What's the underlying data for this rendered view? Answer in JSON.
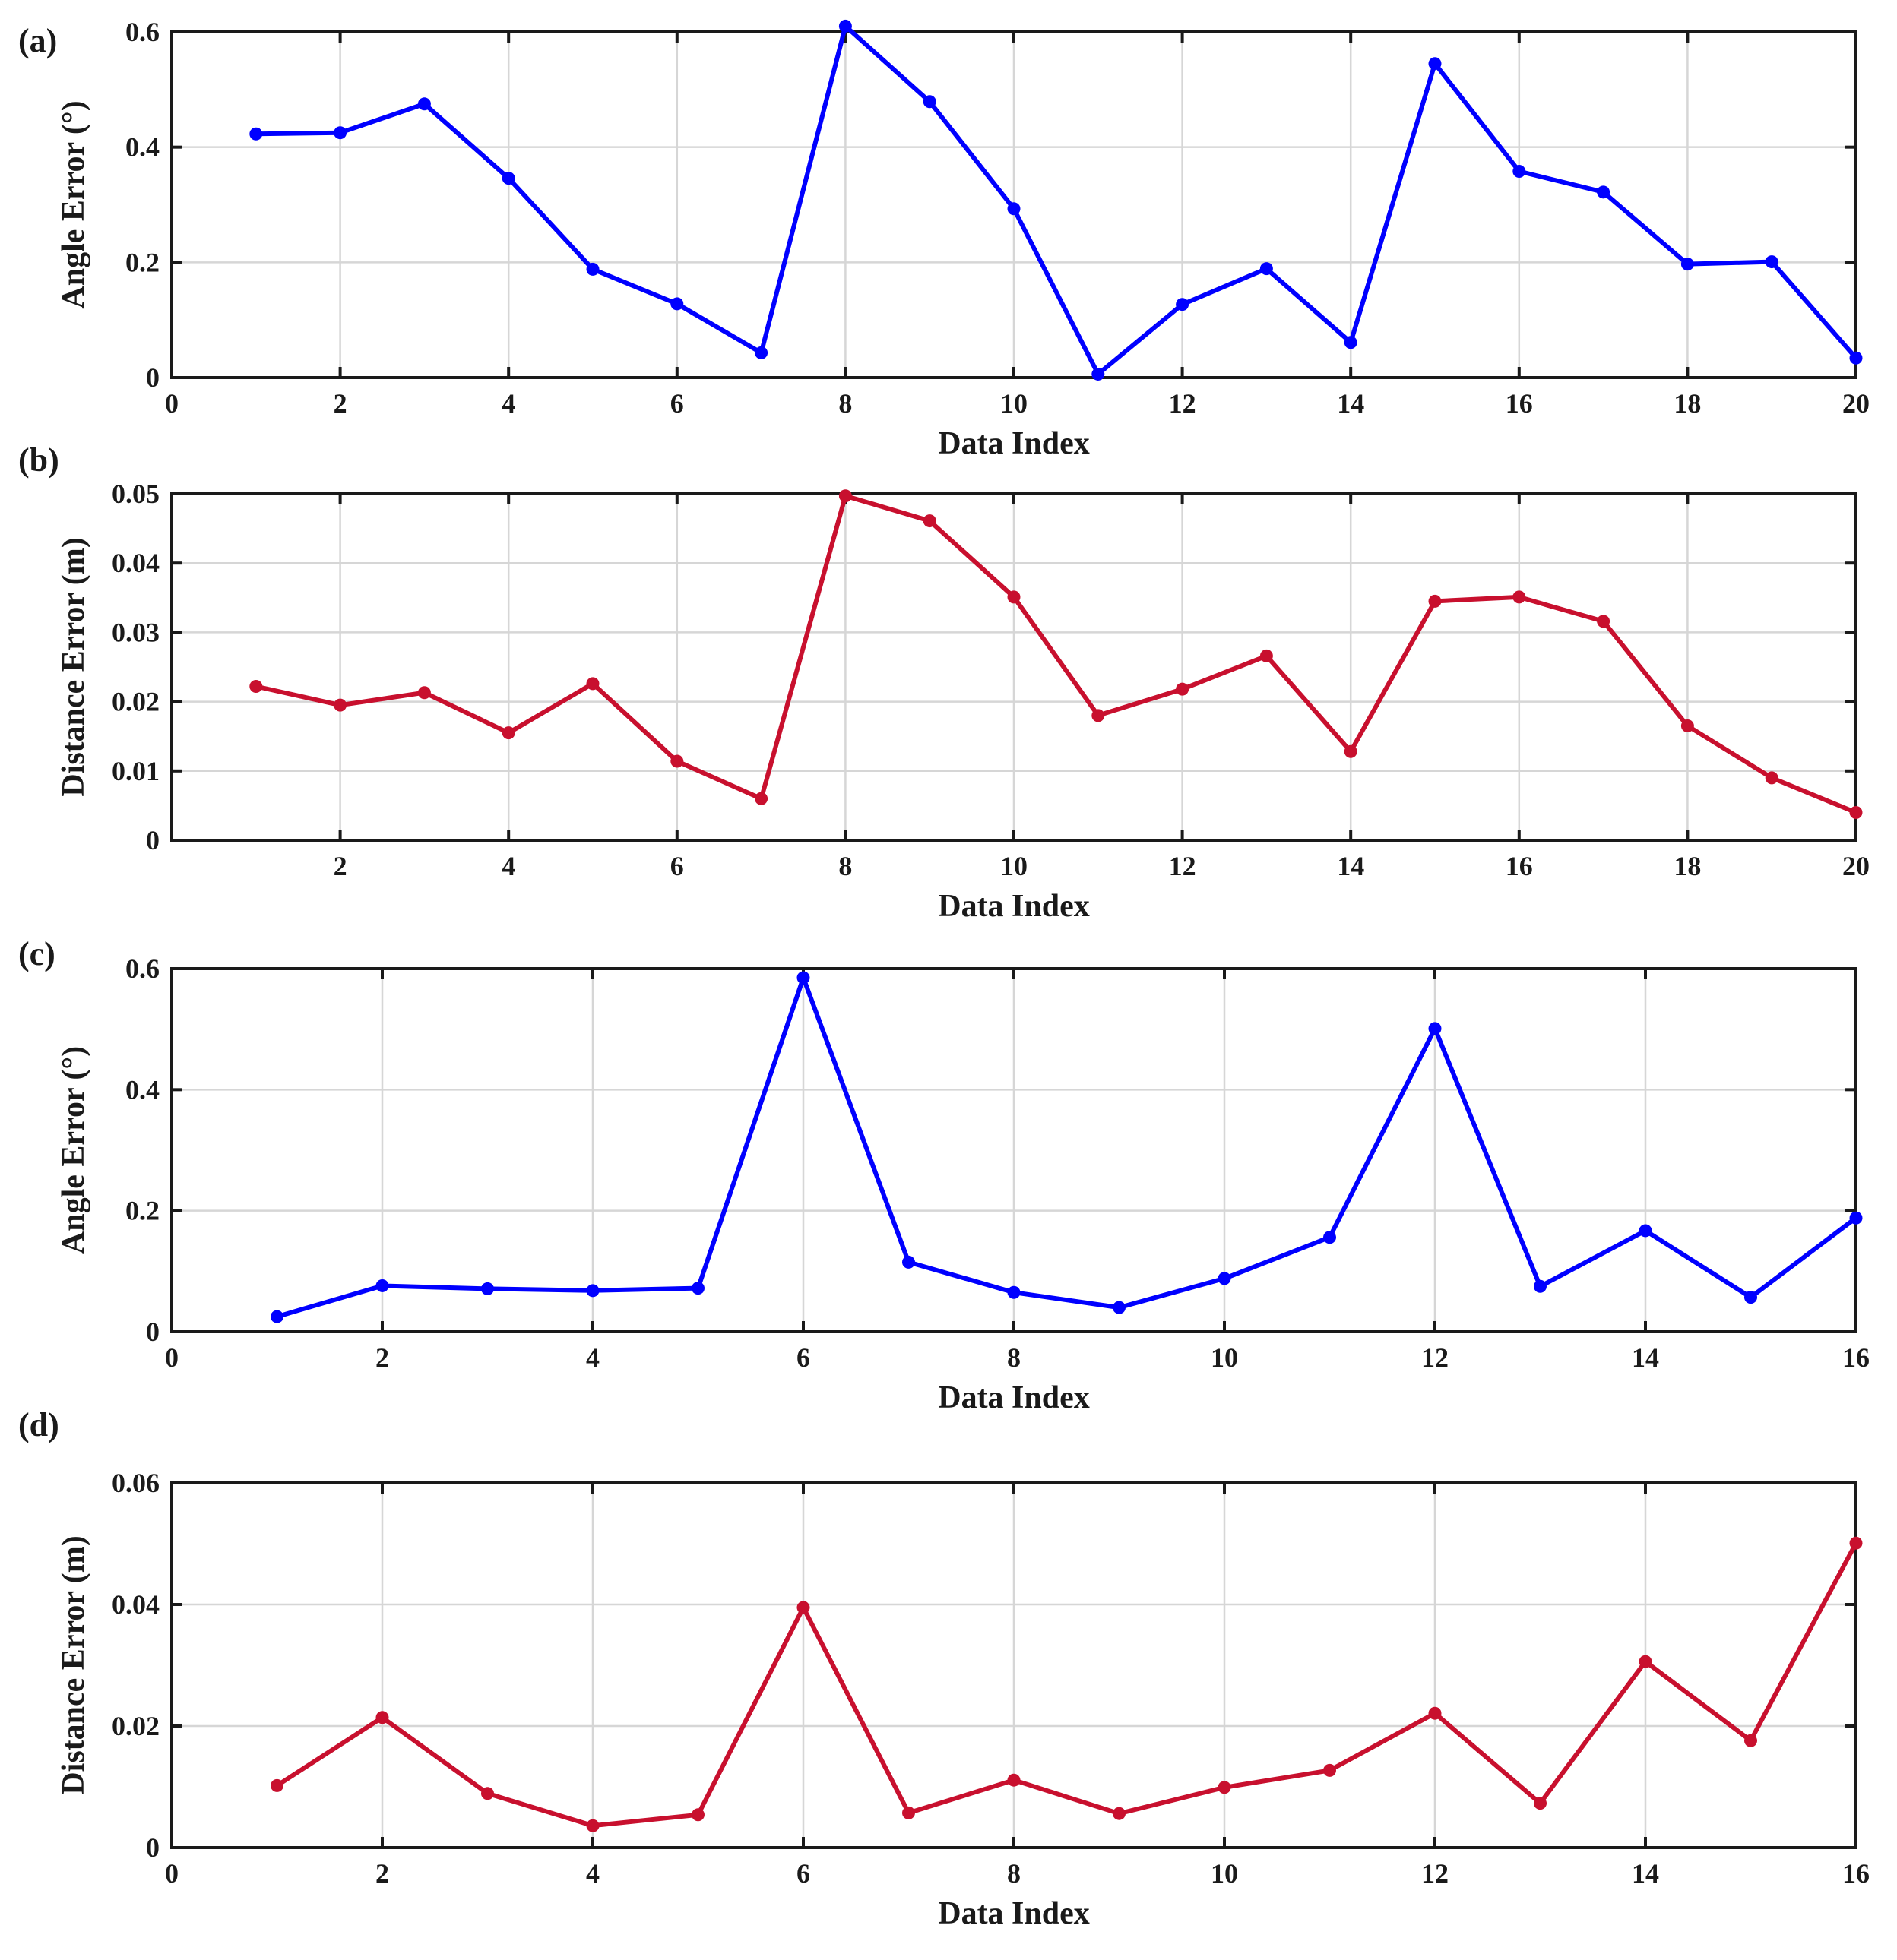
{
  "figure": {
    "panel_count": 4
  },
  "chart_data": [
    {
      "type": "line",
      "panel_label": "(a)",
      "xlabel": "Data Index",
      "ylabel": "Angle Error (°)",
      "xlim": [
        0,
        20
      ],
      "ylim": [
        0,
        0.6
      ],
      "xticks": [
        0,
        2,
        4,
        6,
        8,
        10,
        12,
        14,
        16,
        18,
        20
      ],
      "xtick_labels": [
        "0",
        "2",
        "4",
        "6",
        "8",
        "10",
        "12",
        "14",
        "16",
        "18",
        "20"
      ],
      "yticks": [
        0,
        0.2,
        0.4,
        0.6
      ],
      "ytick_labels": [
        "0",
        "0.2",
        "0.4",
        "0.6"
      ],
      "grid": true,
      "series": [
        {
          "name": "Angle Error",
          "color": "#0000ff",
          "x": [
            1,
            2,
            3,
            4,
            5,
            6,
            7,
            8,
            9,
            10,
            11,
            12,
            13,
            14,
            15,
            16,
            17,
            18,
            19,
            20
          ],
          "values": [
            0.423,
            0.425,
            0.475,
            0.346,
            0.188,
            0.128,
            0.043,
            0.61,
            0.479,
            0.293,
            0.006,
            0.127,
            0.189,
            0.061,
            0.545,
            0.358,
            0.322,
            0.197,
            0.201,
            0.034
          ]
        }
      ]
    },
    {
      "type": "line",
      "panel_label": "(b)",
      "xlabel": "Data Index",
      "ylabel": "Distance Error (m)",
      "xlim": [
        0,
        20
      ],
      "ylim": [
        0,
        0.05
      ],
      "xticks": [
        2,
        4,
        6,
        8,
        10,
        12,
        14,
        16,
        18,
        20
      ],
      "xtick_labels": [
        "2",
        "4",
        "6",
        "8",
        "10",
        "12",
        "14",
        "16",
        "18",
        "20"
      ],
      "yticks": [
        0,
        0.01,
        0.02,
        0.03,
        0.04,
        0.05
      ],
      "ytick_labels": [
        "0",
        "0.01",
        "0.02",
        "0.03",
        "0.04",
        "0.05"
      ],
      "grid": true,
      "series": [
        {
          "name": "Distance Error",
          "color": "#c8102e",
          "x": [
            1,
            2,
            3,
            4,
            5,
            6,
            7,
            8,
            9,
            10,
            11,
            12,
            13,
            14,
            15,
            16,
            17,
            18,
            19,
            20
          ],
          "values": [
            0.0222,
            0.0195,
            0.0213,
            0.0155,
            0.0226,
            0.0114,
            0.006,
            0.0497,
            0.0461,
            0.0351,
            0.018,
            0.0218,
            0.0266,
            0.0128,
            0.0345,
            0.0351,
            0.0316,
            0.0165,
            0.009,
            0.004
          ]
        }
      ]
    },
    {
      "type": "line",
      "panel_label": "(c)",
      "xlabel": "Data Index",
      "ylabel": "Angle Error (°)",
      "xlim": [
        0,
        16
      ],
      "ylim": [
        0,
        0.6
      ],
      "xticks": [
        0,
        2,
        4,
        6,
        8,
        10,
        12,
        14,
        16
      ],
      "xtick_labels": [
        "0",
        "2",
        "4",
        "6",
        "8",
        "10",
        "12",
        "14",
        "16"
      ],
      "yticks": [
        0,
        0.2,
        0.4,
        0.6
      ],
      "ytick_labels": [
        "0",
        "0.2",
        "0.4",
        "0.6"
      ],
      "grid": true,
      "series": [
        {
          "name": "Angle Error",
          "color": "#0000ff",
          "x": [
            1,
            2,
            3,
            4,
            5,
            6,
            7,
            8,
            9,
            10,
            11,
            12,
            13,
            14,
            15,
            16
          ],
          "values": [
            0.025,
            0.076,
            0.071,
            0.068,
            0.072,
            0.585,
            0.115,
            0.065,
            0.04,
            0.088,
            0.156,
            0.501,
            0.075,
            0.167,
            0.057,
            0.188
          ]
        }
      ]
    },
    {
      "type": "line",
      "panel_label": "(d)",
      "xlabel": "Data Index",
      "ylabel": "Distance Error (m)",
      "xlim": [
        0,
        16
      ],
      "ylim": [
        0,
        0.06
      ],
      "xticks": [
        0,
        2,
        4,
        6,
        8,
        10,
        12,
        14,
        16
      ],
      "xtick_labels": [
        "0",
        "2",
        "4",
        "6",
        "8",
        "10",
        "12",
        "14",
        "16"
      ],
      "yticks": [
        0,
        0.02,
        0.04,
        0.06
      ],
      "ytick_labels": [
        "0",
        "0.02",
        "0.04",
        "0.06"
      ],
      "grid": true,
      "series": [
        {
          "name": "Distance Error",
          "color": "#c8102e",
          "x": [
            1,
            2,
            3,
            4,
            5,
            6,
            7,
            8,
            9,
            10,
            11,
            12,
            13,
            14,
            15,
            16
          ],
          "values": [
            0.0102,
            0.0214,
            0.0089,
            0.0036,
            0.0054,
            0.0395,
            0.0057,
            0.0111,
            0.0056,
            0.0099,
            0.0127,
            0.0221,
            0.0073,
            0.0306,
            0.0176,
            0.0501
          ]
        }
      ]
    }
  ]
}
